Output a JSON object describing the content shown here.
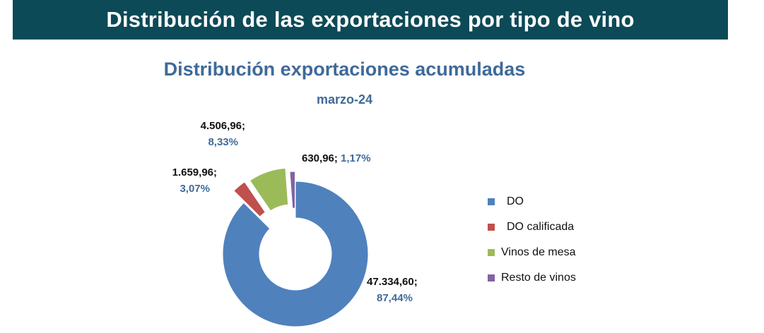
{
  "header": {
    "title": "Distribución de las exportaciones por tipo de vino"
  },
  "chart_data": {
    "type": "pie",
    "variant": "exploded-doughnut",
    "title": "Distribución exportaciones acumuladas",
    "subtitle": "marzo-24",
    "legend_position": "right",
    "categories": [
      "DO",
      "DO calificada",
      "Vinos de mesa",
      "Resto de vinos"
    ],
    "values": [
      47334.6,
      1659.96,
      4506.96,
      630.96
    ],
    "value_labels": [
      "47.334,60;",
      "1.659,96;",
      "4.506,96;",
      "630,96;"
    ],
    "percent_labels": [
      "87,44%",
      "3,07%",
      "8,33%",
      "1,17%"
    ],
    "colors": [
      "#4f81bd",
      "#c0504d",
      "#9bbb59",
      "#8064a2"
    ]
  }
}
